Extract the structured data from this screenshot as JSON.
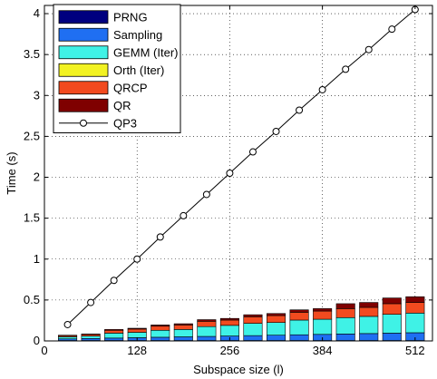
{
  "chart_data": {
    "type": "bar",
    "stacked": true,
    "xlabel": "Subspace size (l)",
    "ylabel": "Time (s)",
    "xlim": [
      0,
      536
    ],
    "ylim": [
      0,
      4.1
    ],
    "xticks": [
      0,
      128,
      256,
      384,
      512
    ],
    "yticks": [
      0,
      0.5,
      1,
      1.5,
      2,
      2.5,
      3,
      3.5,
      4
    ],
    "grid": "dotted",
    "legend_position": "top-left",
    "x": [
      32,
      64,
      96,
      128,
      160,
      192,
      224,
      256,
      288,
      320,
      352,
      384,
      416,
      448,
      480,
      512
    ],
    "series": [
      {
        "name": "PRNG",
        "color": "#00007f",
        "values": [
          0.005,
          0.005,
          0.005,
          0.005,
          0.005,
          0.005,
          0.005,
          0.005,
          0.005,
          0.005,
          0.005,
          0.005,
          0.005,
          0.005,
          0.005,
          0.005
        ]
      },
      {
        "name": "Sampling",
        "color": "#1f6ff2",
        "values": [
          0.02,
          0.025,
          0.03,
          0.035,
          0.04,
          0.045,
          0.05,
          0.055,
          0.06,
          0.065,
          0.07,
          0.075,
          0.08,
          0.085,
          0.09,
          0.095
        ]
      },
      {
        "name": "GEMM (Iter)",
        "color": "#3ff2e6",
        "values": [
          0.025,
          0.03,
          0.06,
          0.065,
          0.085,
          0.09,
          0.12,
          0.13,
          0.15,
          0.155,
          0.18,
          0.185,
          0.2,
          0.21,
          0.23,
          0.24
        ]
      },
      {
        "name": "Orth (Iter)",
        "color": "#f2f222",
        "values": [
          0.0,
          0.0,
          0.0,
          0.0,
          0.0,
          0.0,
          0.0,
          0.0,
          0.0,
          0.0,
          0.0,
          0.0,
          0.0,
          0.0,
          0.0,
          0.0
        ]
      },
      {
        "name": "QRCP",
        "color": "#f24a1f",
        "values": [
          0.015,
          0.02,
          0.035,
          0.04,
          0.05,
          0.055,
          0.065,
          0.065,
          0.08,
          0.085,
          0.095,
          0.1,
          0.11,
          0.11,
          0.13,
          0.13
        ]
      },
      {
        "name": "QR",
        "color": "#7f0000",
        "values": [
          0.005,
          0.005,
          0.01,
          0.01,
          0.015,
          0.015,
          0.02,
          0.02,
          0.025,
          0.025,
          0.03,
          0.03,
          0.06,
          0.06,
          0.07,
          0.07
        ]
      }
    ],
    "line_series": {
      "name": "QP3",
      "marker": "circle",
      "color": "#000000",
      "values": [
        0.2,
        0.47,
        0.74,
        1.0,
        1.27,
        1.53,
        1.79,
        2.05,
        2.31,
        2.56,
        2.82,
        3.07,
        3.32,
        3.56,
        3.81,
        4.05
      ]
    }
  }
}
